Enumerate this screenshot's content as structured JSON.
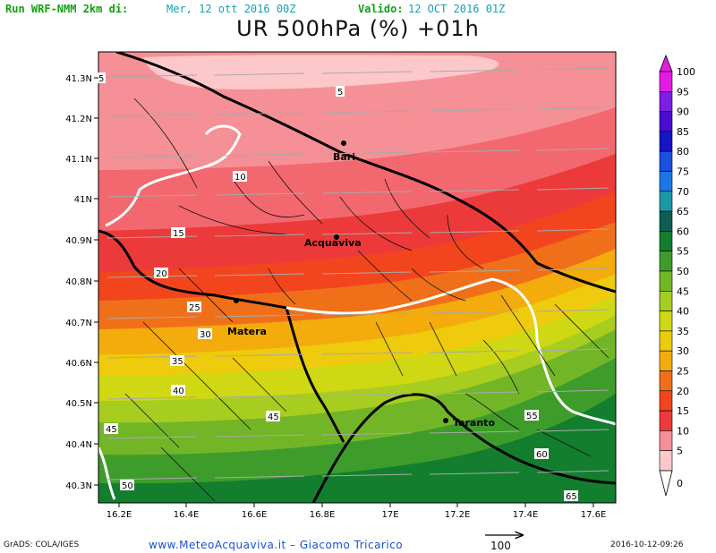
{
  "header": {
    "run_label": "Run WRF-NMM 2km di:",
    "run_date": "Mer, 12 ott 2016 00Z",
    "valid_label": "Valido:",
    "valid_date": "12 OCT 2016 01Z",
    "title": "UR 500hPa (%) +01h"
  },
  "map": {
    "lat_labels": [
      "41.3N",
      "41.2N",
      "41.1N",
      "41N",
      "40.9N",
      "40.8N",
      "40.7N",
      "40.6N",
      "40.5N",
      "40.4N",
      "40.3N"
    ],
    "lon_labels": [
      "16.2E",
      "16.4E",
      "16.6E",
      "16.8E",
      "17E",
      "17.2E",
      "17.4E",
      "17.6E"
    ],
    "cities": [
      "Bari",
      "Acquaviva",
      "Matera",
      "Taranto"
    ],
    "contour_labels": [
      "5",
      "5",
      "10",
      "15",
      "20",
      "25",
      "30",
      "35",
      "40",
      "45",
      "45",
      "50",
      "55",
      "60",
      "65"
    ],
    "colors": {
      "0": "#ffffff",
      "5": "#fcc8ca",
      "10": "#f59096",
      "15": "#f2686e",
      "20": "#ec3a3a",
      "25": "#f2451e",
      "30": "#f0701a",
      "35": "#f3ac0c",
      "40": "#eecb0c",
      "45": "#cfd813",
      "50": "#a6cd20",
      "55": "#72b628",
      "60": "#3e9d2a",
      "65": "#137e2e"
    }
  },
  "colorbar": {
    "labels": [
      "100",
      "95",
      "90",
      "85",
      "80",
      "75",
      "70",
      "65",
      "60",
      "55",
      "50",
      "45",
      "40",
      "35",
      "30",
      "25",
      "20",
      "15",
      "10",
      "5",
      "0"
    ],
    "colors": [
      "#e51ae5",
      "#7d1ee5",
      "#4b0cd1",
      "#1414c8",
      "#1a50e0",
      "#1a78e6",
      "#1a98a8",
      "#0d5e50",
      "#137e2e",
      "#3e9d2a",
      "#72b628",
      "#a6cd20",
      "#cfd813",
      "#eecb0c",
      "#f3ac0c",
      "#f0701a",
      "#f2451e",
      "#ec3a3a",
      "#f59096",
      "#fcc8ca"
    ]
  },
  "footer": {
    "left": "GrADS: COLA/IGES",
    "center": "www.MeteoAcquaviva.it  –  Giacomo Tricarico",
    "vector_label": "100",
    "timestamp": "2016-10-12-09:26"
  }
}
